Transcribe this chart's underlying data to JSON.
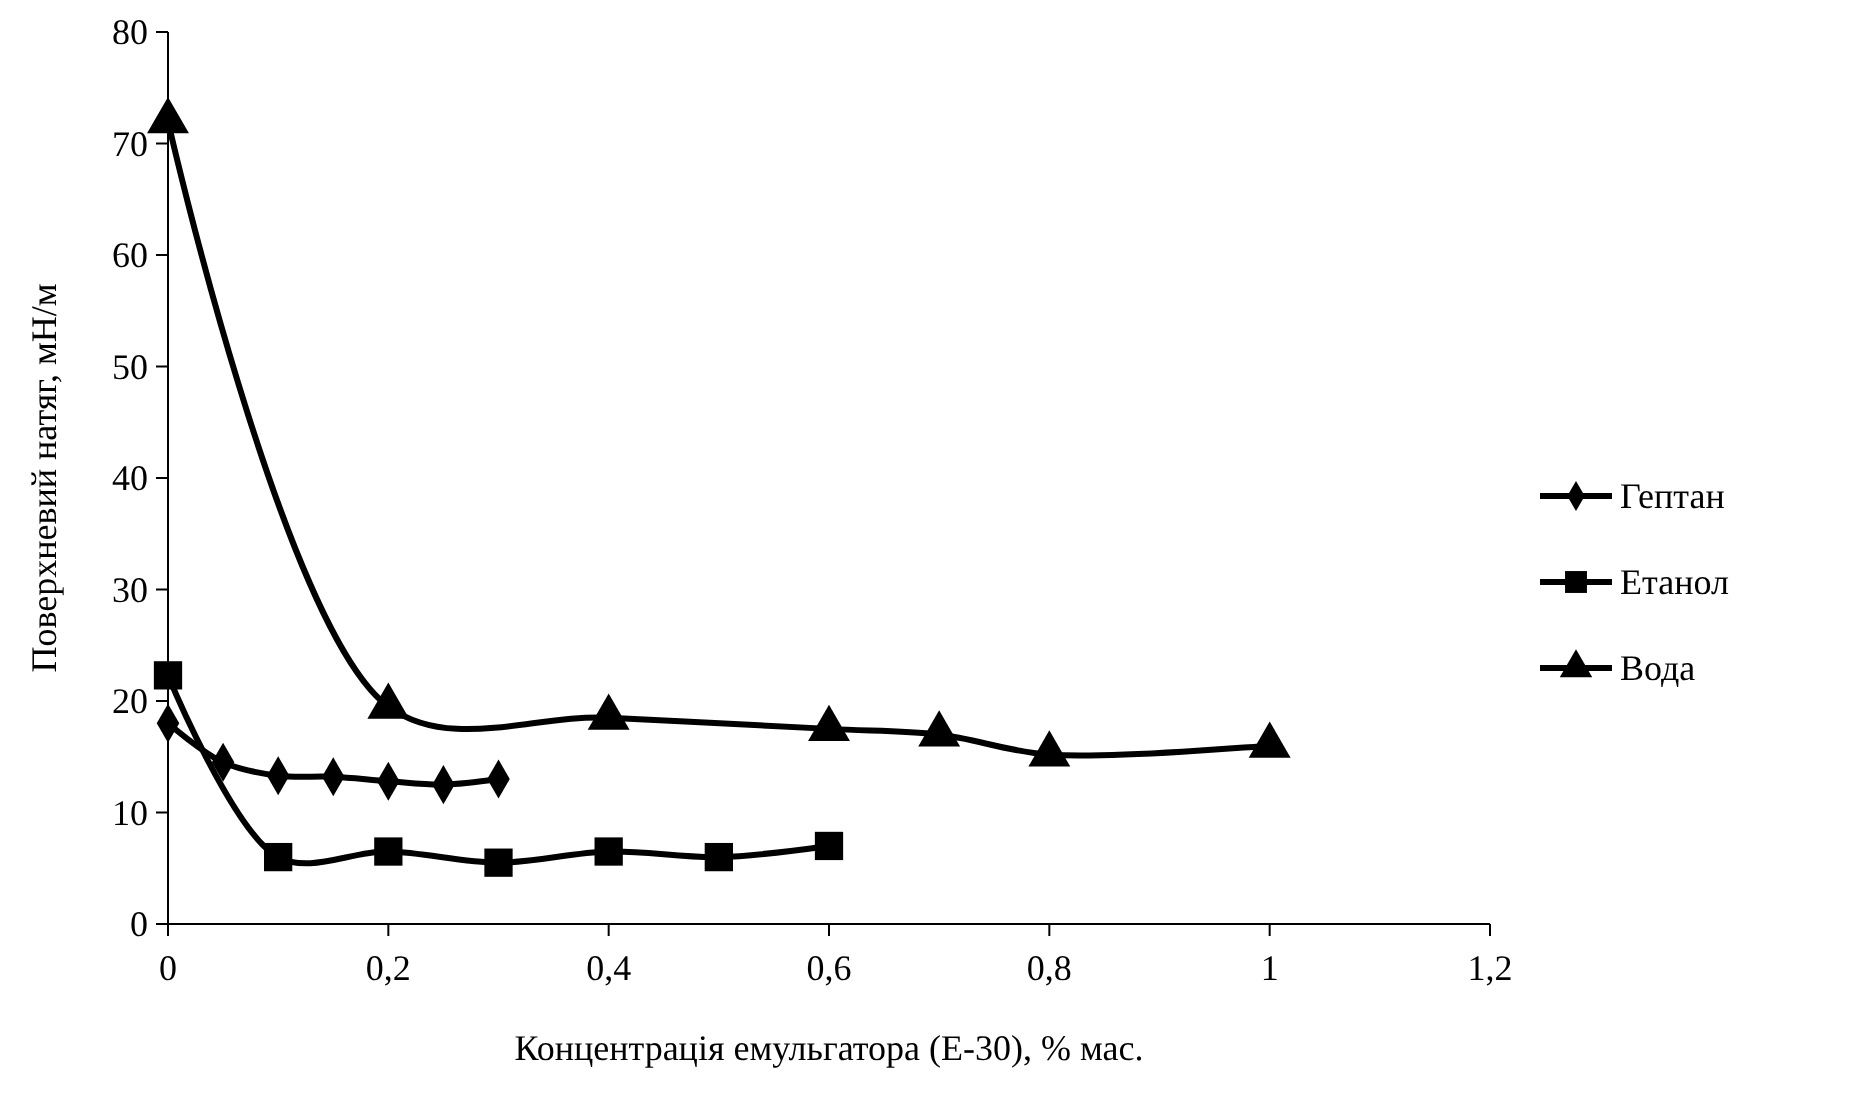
{
  "chart_data": {
    "type": "line",
    "xlabel": "Концентрація емульгатора (Е-30), % мас.",
    "ylabel": "Поверхневий натяг, мН/м",
    "xlim": [
      0,
      1.2
    ],
    "xticks": [
      0,
      {
        "value": 0.2,
        "label": "0,2"
      },
      {
        "value": 0.4,
        "label": "0,4"
      },
      {
        "value": 0.6,
        "label": "0,6"
      },
      {
        "value": 0.8,
        "label": "0,8"
      },
      1,
      {
        "value": 1.2,
        "label": "1,2"
      }
    ],
    "ylim": [
      0,
      80
    ],
    "yticks": [
      0,
      10,
      20,
      30,
      40,
      50,
      60,
      70,
      80
    ],
    "grid": false,
    "legend": "right",
    "line_style": "solid",
    "series": [
      {
        "name": "Гептан",
        "color": "#000000",
        "marker": "diamond",
        "x": [
          0,
          0.05,
          0.1,
          0.15,
          0.2,
          0.25,
          0.3
        ],
        "values": [
          18,
          14.5,
          13.3,
          13.2,
          12.8,
          12.5,
          13
        ]
      },
      {
        "name": "Етанол",
        "color": "#000000",
        "marker": "square",
        "x": [
          0,
          0.1,
          0.2,
          0.3,
          0.4,
          0.5,
          0.6
        ],
        "values": [
          22.3,
          6,
          6.5,
          5.5,
          6.5,
          6,
          7
        ]
      },
      {
        "name": "Вода",
        "color": "#000000",
        "marker": "triangle",
        "x": [
          0,
          0.2,
          0.4,
          0.6,
          0.7,
          0.8,
          1
        ],
        "values": [
          72,
          19.5,
          18.5,
          17.5,
          17,
          15.2,
          16
        ]
      }
    ]
  }
}
